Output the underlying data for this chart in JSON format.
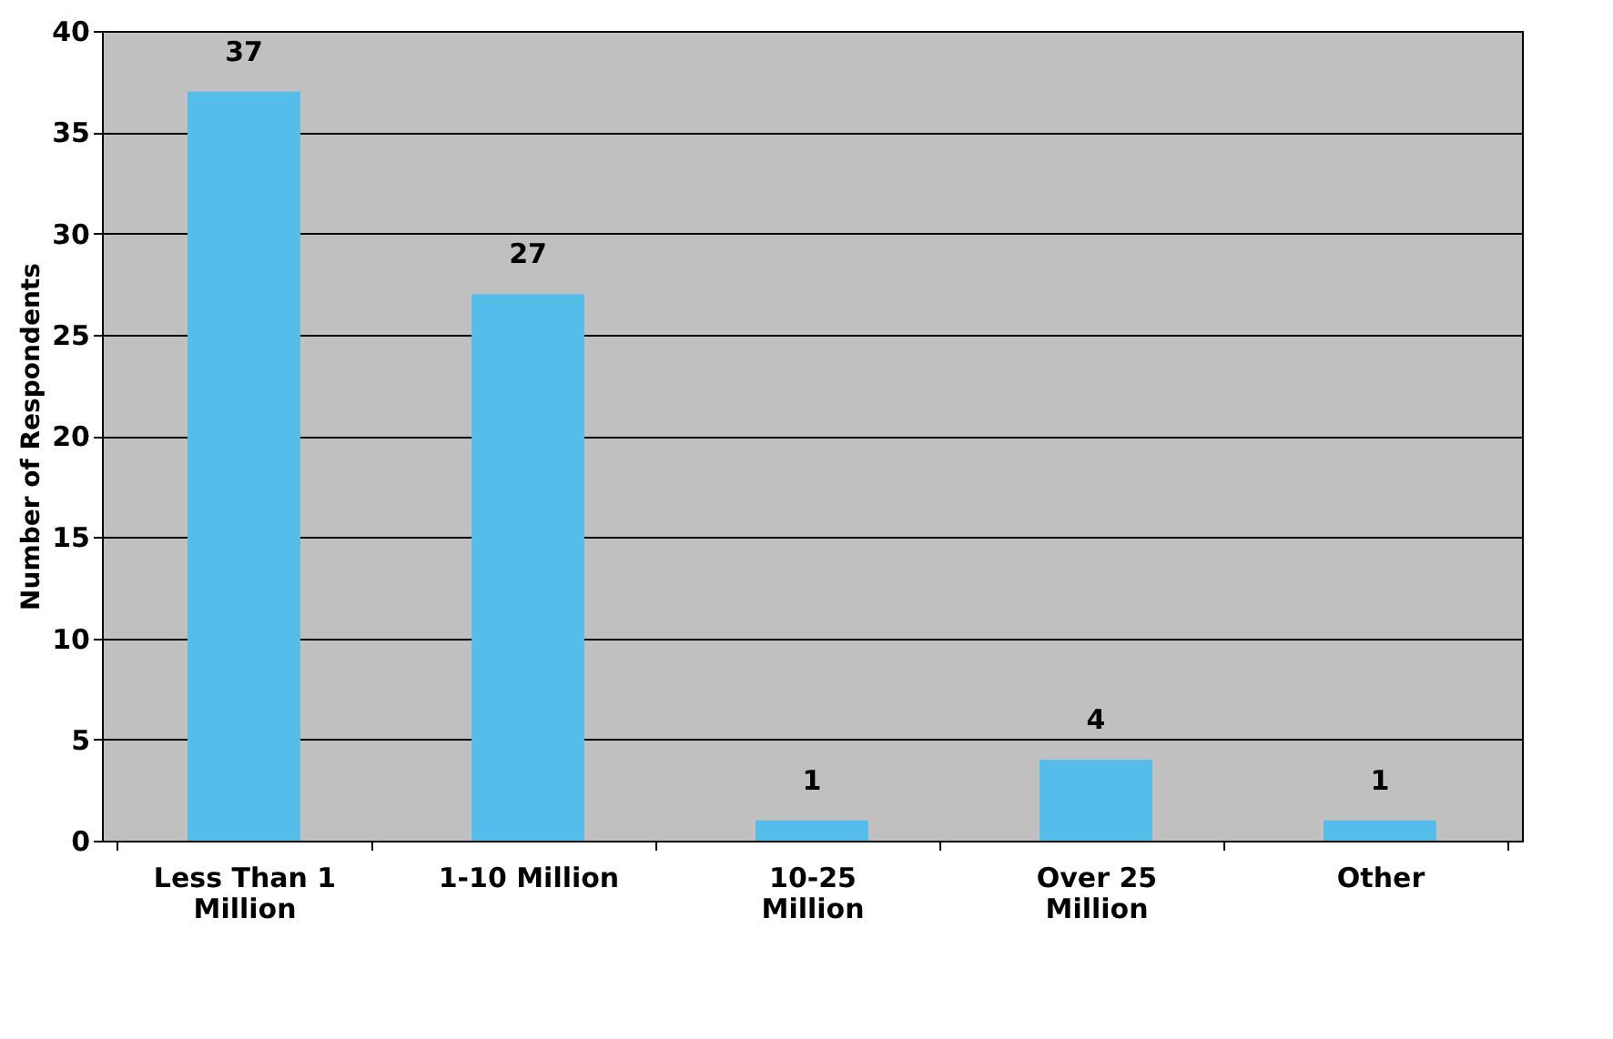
{
  "chart_data": {
    "type": "bar",
    "ylabel": "Number of Respondents",
    "categories": [
      "Less Than 1\nMillion",
      "1-10 Million",
      "10-25\nMillion",
      "Over 25\nMillion",
      "Other"
    ],
    "values": [
      37,
      27,
      1,
      4,
      1
    ],
    "color": "#55bdea",
    "ylim": [
      0,
      40
    ],
    "yticks": [
      0,
      5,
      10,
      15,
      20,
      25,
      30,
      35,
      40
    ],
    "grid": "y",
    "data_labels": true
  }
}
